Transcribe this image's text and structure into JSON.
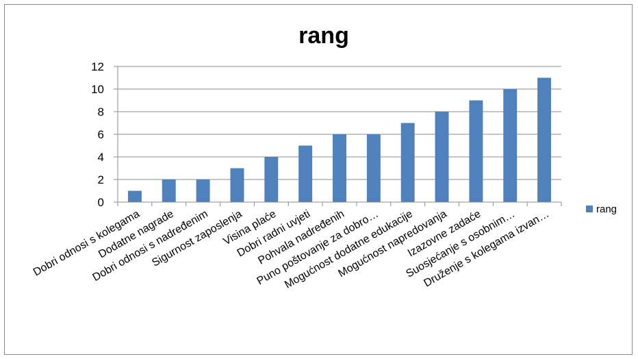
{
  "chart_data": {
    "type": "bar",
    "title": "rang",
    "xlabel": "",
    "ylabel": "",
    "categories": [
      "Dobri odnosi s kolegama",
      "Dodatne nagrade",
      "Dobri odnosi s nadređenim",
      "Sigurnost zaposlenja",
      "Visina plaće",
      "Dobri radni uvjeti",
      "Pohvala nadređenih",
      "Puno poštovanje za dobro…",
      "Mogućnost dodatne edukacije",
      "Mogućnost napredovanja",
      "Izazovne zadaće",
      "Suosjećanje s osobnim…",
      "Druženje s kolegama izvan…"
    ],
    "series": [
      {
        "name": "rang",
        "values": [
          1,
          2,
          2,
          3,
          4,
          5,
          6,
          6,
          7,
          8,
          9,
          10,
          11
        ]
      }
    ],
    "ylim": [
      0,
      12
    ],
    "yticks": [
      "0",
      "2",
      "4",
      "6",
      "8",
      "10",
      "12"
    ],
    "grid": true,
    "legend_position": "right",
    "bar_color": "#4f81bd"
  }
}
